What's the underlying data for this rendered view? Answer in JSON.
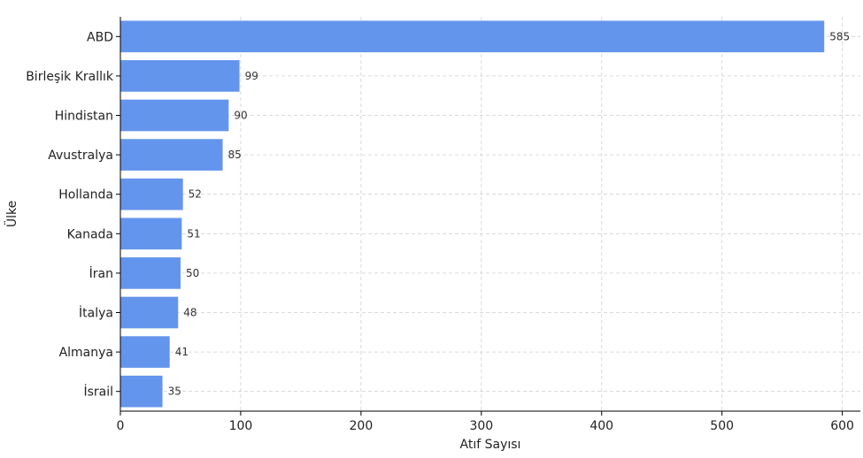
{
  "chart_data": {
    "type": "bar",
    "orientation": "horizontal",
    "categories": [
      "ABD",
      "Birleşik Krallık",
      "Hindistan",
      "Avustralya",
      "Hollanda",
      "Kanada",
      "İran",
      "İtalya",
      "Almanya",
      "İsrail"
    ],
    "values": [
      585,
      99,
      90,
      85,
      52,
      51,
      50,
      48,
      41,
      35
    ],
    "title": "",
    "xlabel": "Atıf Sayısı",
    "ylabel": "Ülke",
    "xlim": [
      0,
      615
    ],
    "xticks": [
      0,
      100,
      200,
      300,
      400,
      500,
      600
    ],
    "grid": true,
    "bar_color": "#6495ED",
    "data_labels": true
  }
}
